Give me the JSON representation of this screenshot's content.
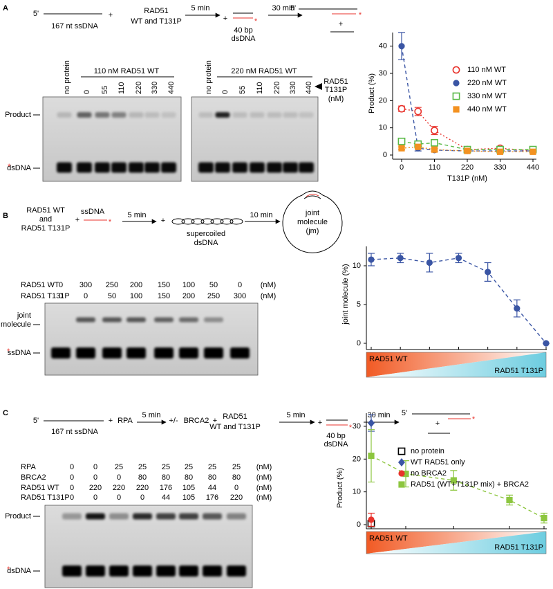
{
  "panels": [
    {
      "label": "A",
      "scheme": [
        "5'",
        "167 nt ssDNA",
        "+",
        "RAD51",
        "WT and T131P",
        "5 min",
        "+",
        "*",
        "40 bp",
        "dsDNA",
        "30 min",
        "5'",
        "*",
        "+"
      ],
      "gel": {
        "groups": [
          "110 nM RAD51 WT",
          "220 nM RAD51 WT"
        ],
        "lanes": [
          [
            "no protein",
            0,
            55,
            110,
            220,
            330,
            440
          ],
          [
            "no protein",
            0,
            55,
            110,
            220,
            330,
            440
          ]
        ],
        "side_label": [
          "RAD51",
          "T131P",
          "(nM)"
        ],
        "band_labels": [
          "Product",
          "dsDNA"
        ],
        "asterisk": "*"
      }
    },
    {
      "label": "B",
      "scheme": [
        "RAD51 WT",
        "and",
        "RAD51 T131P",
        "+",
        "ssDNA",
        "*",
        "5 min",
        "+",
        "supercoiled",
        "dsDNA",
        "10 min",
        "joint",
        "molecule",
        "(jm)"
      ],
      "gel": {
        "rows": [
          {
            "name": "RAD51 WT",
            "values": [
              0,
              300,
              250,
              200,
              150,
              100,
              50,
              0
            ]
          },
          {
            "name": "RAD51 T131P",
            "values": [
              0,
              0,
              50,
              100,
              150,
              200,
              250,
              300
            ]
          }
        ],
        "unit": "(nM)",
        "band_labels": [
          "joint",
          "molecule",
          "ssDNA"
        ],
        "asterisk": "*"
      }
    },
    {
      "label": "C",
      "scheme": [
        "5'",
        "167 nt ssDNA",
        "+",
        "RPA",
        "5 min",
        "+/-",
        "BRCA2",
        "+",
        "RAD51",
        "WT and T131P",
        "5 min",
        "+",
        "*",
        "40 bp",
        "dsDNA",
        "30 min",
        "5'",
        "*",
        "+"
      ],
      "gel": {
        "rows": [
          {
            "name": "RPA",
            "values": [
              0,
              0,
              25,
              25,
              25,
              25,
              25,
              25
            ]
          },
          {
            "name": "BRCA2",
            "values": [
              0,
              0,
              0,
              80,
              80,
              80,
              80,
              80
            ]
          },
          {
            "name": "RAD51 WT",
            "values": [
              0,
              220,
              220,
              220,
              176,
              105,
              44,
              0
            ]
          },
          {
            "name": "RAD51 T131P",
            "values": [
              0,
              0,
              0,
              0,
              44,
              105,
              176,
              220
            ]
          }
        ],
        "unit": "(nM)",
        "band_labels": [
          "Product",
          "dsDNA"
        ],
        "asterisk": "*"
      }
    }
  ],
  "chart_data": [
    {
      "type": "line",
      "x_label": "T131P (nM)",
      "y_label": "Product (%)",
      "x": [
        0,
        55,
        110,
        220,
        330,
        440
      ],
      "xlim": [
        0,
        440
      ],
      "xticks": [
        0,
        110,
        220,
        330,
        440
      ],
      "ylim": [
        0,
        45
      ],
      "yticks": [
        0,
        10,
        20,
        30,
        40
      ],
      "legend": "upper right",
      "series": [
        {
          "name": "110 nM WT",
          "color": "#e8322b",
          "marker": "open-circle",
          "line_style": "dotted",
          "values": [
            17,
            16,
            9,
            2,
            2.5,
            1.5
          ],
          "errors": [
            1,
            1.5,
            1.5,
            0.5,
            0.5,
            0.3
          ]
        },
        {
          "name": "220 nM WT",
          "color": "#3a55a4",
          "marker": "circle",
          "line_style": "dashed",
          "values": [
            40,
            2.5,
            1.8,
            1.5,
            1.5,
            1.5
          ],
          "errors": [
            5,
            1,
            0.5,
            0.5,
            0.5,
            0.3
          ]
        },
        {
          "name": "330 nM WT",
          "color": "#59b947",
          "marker": "open-square",
          "line_style": "dashed",
          "values": [
            5,
            4,
            4.5,
            2,
            2,
            2
          ],
          "errors": [
            1,
            1,
            1,
            0.5,
            0.5,
            0.5
          ]
        },
        {
          "name": "440 nM WT",
          "color": "#f39221",
          "marker": "square",
          "line_style": "dotted",
          "values": [
            2.5,
            3,
            2,
            1.5,
            1.2,
            1.2
          ],
          "errors": [
            0.5,
            0.5,
            0.5,
            0.3,
            0.3,
            0.3
          ]
        }
      ]
    },
    {
      "type": "line",
      "y_label": "joint molecule (%)",
      "categories": [
        null,
        null,
        null,
        null,
        null,
        null,
        null
      ],
      "values": [
        10.8,
        11,
        10.4,
        11,
        9.2,
        4.5,
        0
      ],
      "errors": [
        0.8,
        0.6,
        1.2,
        0.6,
        1.2,
        1.1,
        0
      ],
      "color": "#3a55a4",
      "marker": "circle",
      "line_style": "dashed",
      "ylim": [
        0,
        12.5
      ],
      "yticks": [
        0,
        5,
        10
      ],
      "gradient_labels": [
        "RAD51 WT",
        "RAD51 T131P"
      ],
      "gradient_colors": [
        "#f15a24",
        "#6dcde0"
      ]
    },
    {
      "type": "line",
      "y_label": "Product (%)",
      "x": [
        0,
        44,
        105,
        176,
        220
      ],
      "xlim": [
        0,
        220
      ],
      "ylim": [
        0,
        34
      ],
      "yticks": [
        0,
        10,
        20,
        30
      ],
      "legend": "upper right",
      "gradient_labels": [
        "RAD51 WT",
        "RAD51 T131P"
      ],
      "gradient_colors": [
        "#f15a24",
        "#6dcde0"
      ],
      "series": [
        {
          "name": "no protein",
          "color": "#000000",
          "marker": "open-square",
          "line_style": "none",
          "values": [
            0.3,
            null,
            null,
            null,
            null
          ]
        },
        {
          "name": "WT RAD51 only",
          "color": "#3a55a4",
          "marker": "diamond",
          "line_style": "none",
          "values": [
            31,
            null,
            null,
            null,
            null
          ],
          "errors": [
            2.5,
            null,
            null,
            null,
            null
          ]
        },
        {
          "name": "no BRCA2",
          "color": "#e8322b",
          "marker": "circle",
          "line_style": "none",
          "values": [
            1.5,
            null,
            null,
            null,
            null
          ],
          "errors": [
            2,
            null,
            null,
            null,
            null
          ]
        },
        {
          "name": "RAD51 (WT+T131P mix) + BRCA2",
          "color": "#8dc63f",
          "marker": "square",
          "line_style": "dashed",
          "values": [
            21,
            15.5,
            13.5,
            7.5,
            2
          ],
          "errors": [
            8,
            4,
            3,
            1.5,
            1.5
          ]
        }
      ]
    }
  ]
}
